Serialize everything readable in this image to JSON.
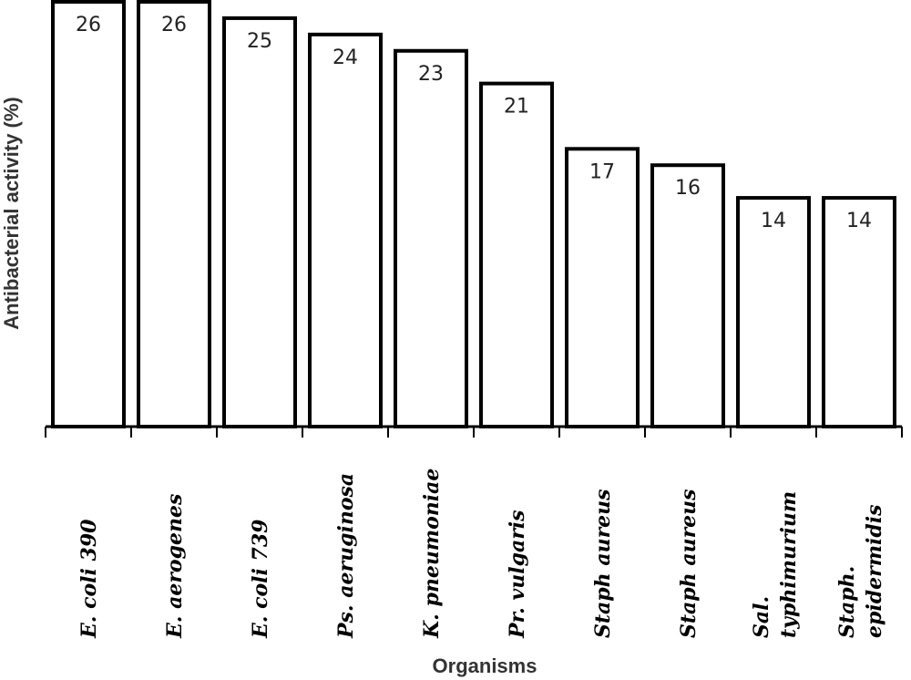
{
  "chart_data": {
    "type": "bar",
    "title": "",
    "xlabel": "Organisms",
    "ylabel": "Antibacterial activity (%)",
    "ylim": [
      0,
      26
    ],
    "grid": false,
    "legend": "none",
    "categories": [
      [
        "E. coli 390"
      ],
      [
        "E. aerogenes"
      ],
      [
        "E. coli 739"
      ],
      [
        "Ps. aeruginosa"
      ],
      [
        "K. pneumoniae"
      ],
      [
        "Pr. vulgaris"
      ],
      [
        "Staph aureus"
      ],
      [
        "Staph aureus"
      ],
      [
        "Sal.",
        "typhimurium"
      ],
      [
        "Staph.",
        "epidermidis"
      ]
    ],
    "values": [
      26,
      26,
      25,
      24,
      23,
      21,
      17,
      16,
      14,
      14
    ],
    "colors": {
      "bar_fill": "#ffffff",
      "bar_stroke": "#000000",
      "axis": "#000000"
    }
  }
}
